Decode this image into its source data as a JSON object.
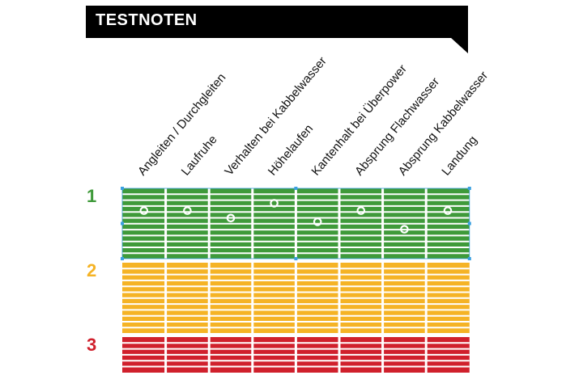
{
  "title": "TESTNOTEN",
  "chart_data": {
    "type": "scatter",
    "categories": [
      "Angleiten / Durchgleiten",
      "Laufruhe",
      "Verhalten bei Kabbelwasser",
      "Höhelaufen",
      "Kantenhalt bei Überpower",
      "Absprung Flachwasser",
      "Absprung Kabbelwasser",
      "Landung"
    ],
    "grades": [
      {
        "label": "1",
        "color": "#3f9a3a"
      },
      {
        "label": "2",
        "color": "#f5b325"
      },
      {
        "label": "3",
        "color": "#d0202c"
      }
    ],
    "values": [
      1.3,
      1.3,
      1.4,
      1.2,
      1.45,
      1.3,
      1.55,
      1.3
    ],
    "y_scale": "grade 1 (best) at top to 3 (worst) at bottom",
    "marker_color": "#ffffff",
    "selection_color": "#3aa0e0"
  }
}
